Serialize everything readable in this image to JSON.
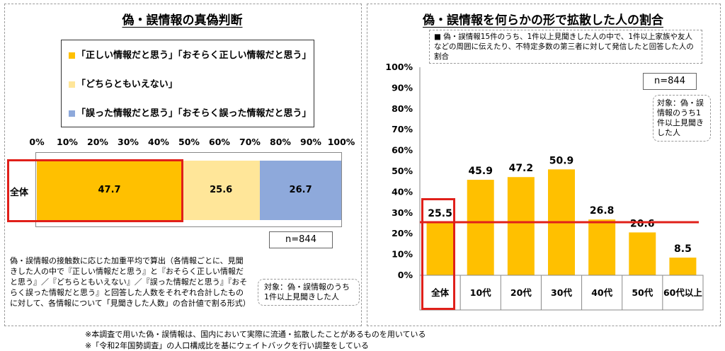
{
  "left_panel": {
    "title": "偽・誤情報の真偽判断",
    "legend": [
      {
        "label": "「正しい情報だと思う」「おそらく正しい情報だと思う」",
        "color": "#ffc000"
      },
      {
        "label": "「どちらともいえない」",
        "color": "#ffe699"
      },
      {
        "label": "「誤った情報だと思う」「おそらく誤った情報だと思う」",
        "color": "#8ea9db"
      }
    ],
    "row_label": "全体",
    "n_label": "n=844",
    "note": "偽・誤情報の接触数に応じた加重平均で算出（各情報ごとに、見聞きした人の中で『正しい情報だと思う』と『おそらく正しい情報だと思う』／『どちらともいえない』／『誤った情報だと思う』『おそらく誤った情報だと思う』と回答した人数をそれぞれ合計したものに対して、各情報について「見聞きした人数」の合計値で割る形式）",
    "target": "対象：偽・誤情報のうち1件以上見聞きした人"
  },
  "right_panel": {
    "title": "偽・誤情報を何らかの形で拡散した人の割合",
    "description": "■ 偽・誤情報15件のうち、1件以上見聞きした人の中で、1件以上家族や友人などの周囲に伝えたり、不特定多数の第三者に対して発信したと回答した人の割合",
    "n_label": "n=844",
    "target": "対象：偽・誤情報のうち1件以上見聞きした人"
  },
  "footer": [
    "※本調査で用いた偽・誤情報は、国内において実際に流通・拡散したことがあるものを用いている",
    "※「令和2年国勢調査」の人口構成比を基にウェイトバックを行い調整をしている"
  ],
  "chart_data": [
    {
      "type": "bar",
      "orientation": "horizontal",
      "stacked": true,
      "title": "偽・誤情報の真偽判断",
      "categories": [
        "全体"
      ],
      "series": [
        {
          "name": "「正しい情報だと思う」「おそらく正しい情報だと思う」",
          "values": [
            47.7
          ],
          "color": "#ffc000"
        },
        {
          "name": "「どちらともいえない」",
          "values": [
            25.6
          ],
          "color": "#ffe699"
        },
        {
          "name": "「誤った情報だと思う」「おそらく誤った情報だと思う」",
          "values": [
            26.7
          ],
          "color": "#8ea9db"
        }
      ],
      "xlim": [
        0,
        100
      ],
      "ticks": [
        "0%",
        "10%",
        "20%",
        "30%",
        "40%",
        "50%",
        "60%",
        "70%",
        "80%",
        "90%",
        "100%"
      ],
      "legend": "top",
      "grid": false
    },
    {
      "type": "bar",
      "title": "偽・誤情報を何らかの形で拡散した人の割合",
      "categories": [
        "全体",
        "10代",
        "20代",
        "30代",
        "40代",
        "50代",
        "60代以上"
      ],
      "values": [
        25.5,
        45.9,
        47.2,
        50.9,
        26.8,
        20.6,
        8.5
      ],
      "color": "#ffc000",
      "ylim": [
        0,
        100
      ],
      "ticks": [
        "0%",
        "10%",
        "20%",
        "30%",
        "40%",
        "50%",
        "60%",
        "70%",
        "80%",
        "90%",
        "100%"
      ],
      "reference_line": {
        "value": 25.5,
        "color": "#e0201a"
      },
      "grid": false,
      "legend": "none"
    }
  ]
}
